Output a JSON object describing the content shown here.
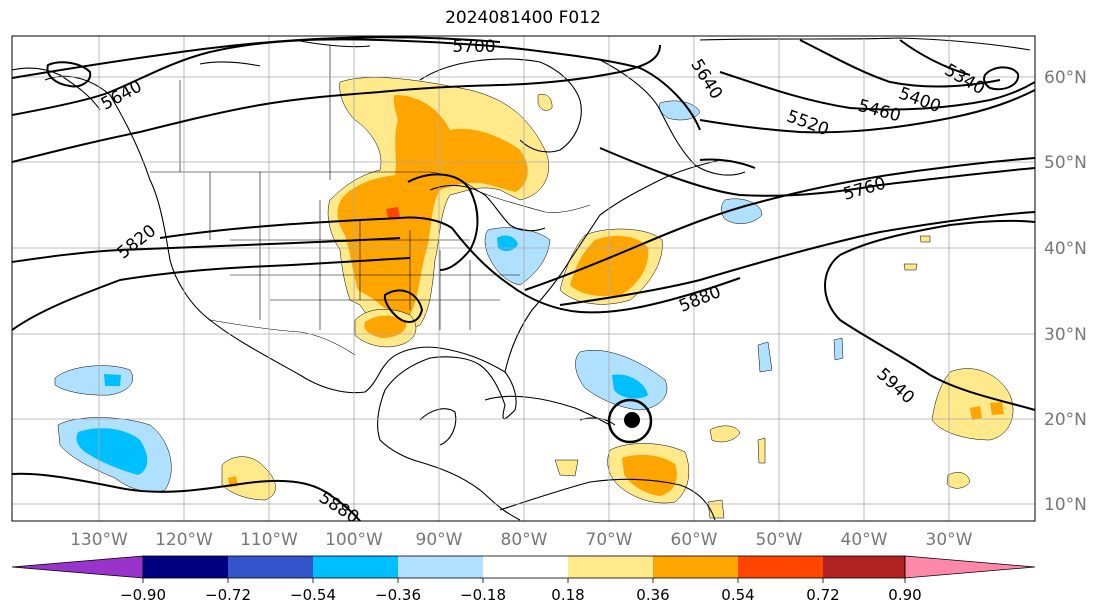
{
  "title": "2024081400 F012",
  "lon_labels": [
    "130°W",
    "120°W",
    "110°W",
    "100°W",
    "90°W",
    "80°W",
    "70°W",
    "60°W",
    "50°W",
    "40°W",
    "30°W"
  ],
  "lat_labels": [
    "60°N",
    "50°N",
    "40°N",
    "30°N",
    "20°N",
    "10°N"
  ],
  "contour_labels": [
    "5700",
    "5640",
    "5640",
    "5400",
    "5340",
    "5460",
    "5520",
    "5760",
    "5820",
    "5880",
    "5880",
    "5940"
  ],
  "colorbar": {
    "tick_labels": [
      "−0.90",
      "−0.72",
      "−0.54",
      "−0.36",
      "−0.18",
      "0.18",
      "0.36",
      "0.54",
      "0.72",
      "0.90"
    ],
    "colors": [
      "#9933cc",
      "#000080",
      "#3355cc",
      "#00bfff",
      "#b0e0ff",
      "#ffffff",
      "#ffe98a",
      "#ffa500",
      "#ff4500",
      "#b22222",
      "#ff88aa"
    ]
  },
  "colors": {
    "light_yellow": "#ffe98a",
    "orange": "#ffa500",
    "red_orange": "#ff4500",
    "light_blue": "#b0e0ff",
    "deep_sky_blue": "#00bfff",
    "contour": "#000000",
    "grid": "#aaaaaa",
    "tick_label": "#777777"
  }
}
